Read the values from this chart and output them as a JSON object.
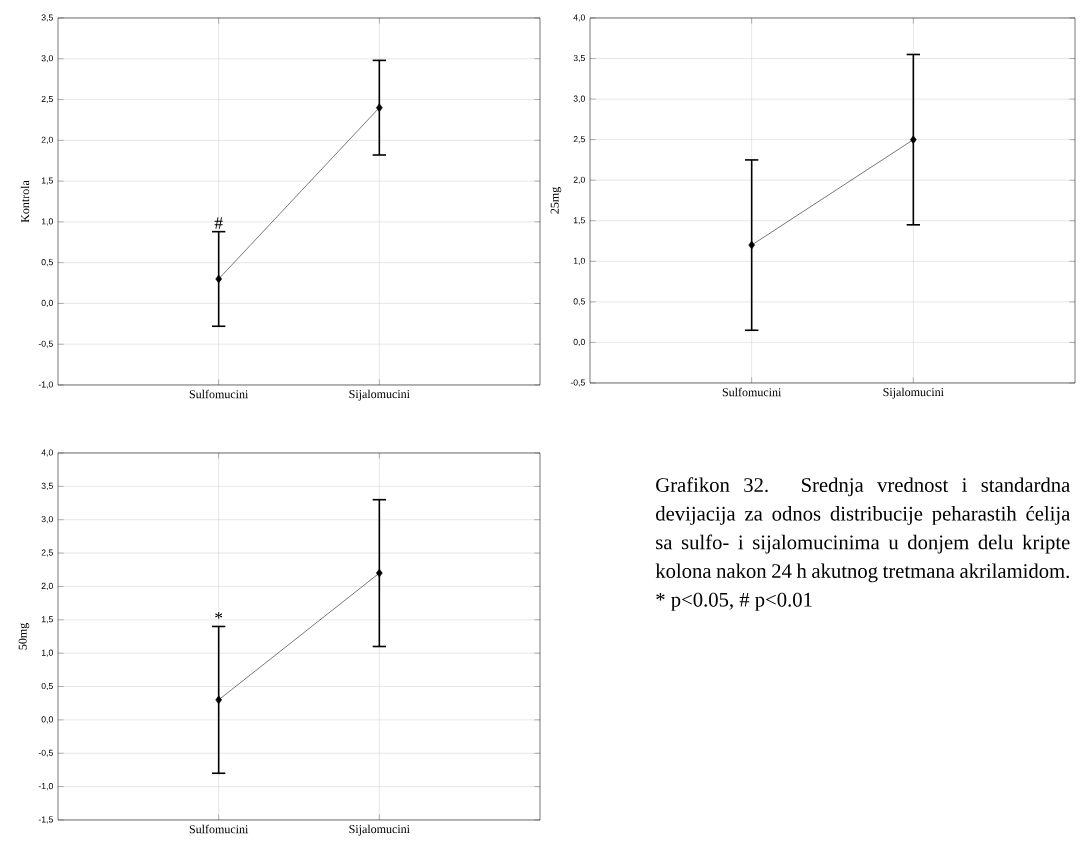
{
  "chart_data": [
    {
      "type": "line",
      "categories": [
        "Sulfomucini",
        "Sijalomucini"
      ],
      "ylabel": "Kontrola",
      "series": [
        {
          "color": "#000000",
          "values": [
            0.3,
            2.4
          ],
          "errors": [
            0.58,
            0.58
          ]
        }
      ],
      "ylim": [
        -1,
        3.5
      ],
      "yticks": [
        {
          "value": -1,
          "label": "-1,0"
        },
        {
          "value": -0.5,
          "label": "-0,5"
        },
        {
          "value": 0,
          "label": "0,0"
        },
        {
          "value": 0.5,
          "label": "0,5"
        },
        {
          "value": 1,
          "label": "1,0"
        },
        {
          "value": 1.5,
          "label": "1,5"
        },
        {
          "value": 2,
          "label": "2,0"
        },
        {
          "value": 2.5,
          "label": "2,5"
        },
        {
          "value": 3,
          "label": "3,0"
        },
        {
          "value": 3.5,
          "label": "3,5"
        }
      ],
      "grid": true,
      "marker": "diamond",
      "line_style": "solid",
      "annotations": [
        {
          "text": "#",
          "x": "Sulfomucini",
          "y": 0.88
        }
      ]
    },
    {
      "type": "line",
      "categories": [
        "Sulfomucini",
        "Sijalomucini"
      ],
      "ylabel": "25mg",
      "series": [
        {
          "color": "#000000",
          "values": [
            1.2,
            2.5
          ],
          "errors": [
            1.05,
            1.05
          ]
        }
      ],
      "ylim": [
        -0.5,
        4
      ],
      "yticks": [
        {
          "value": -0.5,
          "label": "-0,5"
        },
        {
          "value": 0,
          "label": "0,0"
        },
        {
          "value": 0.5,
          "label": "0,5"
        },
        {
          "value": 1,
          "label": "1,0"
        },
        {
          "value": 1.5,
          "label": "1,5"
        },
        {
          "value": 2,
          "label": "2,0"
        },
        {
          "value": 2.5,
          "label": "2,5"
        },
        {
          "value": 3,
          "label": "3,0"
        },
        {
          "value": 3.5,
          "label": "3,5"
        },
        {
          "value": 4,
          "label": "4,0"
        }
      ],
      "grid": true,
      "marker": "diamond",
      "line_style": "solid"
    },
    {
      "type": "line",
      "categories": [
        "Sulfomucini",
        "Sijalomucini"
      ],
      "ylabel": "50mg",
      "series": [
        {
          "color": "#000000",
          "values": [
            0.3,
            2.2
          ],
          "errors": [
            1.1,
            1.1
          ]
        }
      ],
      "ylim": [
        -1.5,
        4
      ],
      "yticks": [
        {
          "value": -1.5,
          "label": "-1,5"
        },
        {
          "value": -1,
          "label": "-1,0"
        },
        {
          "value": -0.5,
          "label": "-0,5"
        },
        {
          "value": 0,
          "label": "0,0"
        },
        {
          "value": 0.5,
          "label": "0,5"
        },
        {
          "value": 1,
          "label": "1,0"
        },
        {
          "value": 1.5,
          "label": "1,5"
        },
        {
          "value": 2,
          "label": "2,0"
        },
        {
          "value": 2.5,
          "label": "2,5"
        },
        {
          "value": 3,
          "label": "3,0"
        },
        {
          "value": 3.5,
          "label": "3,5"
        },
        {
          "value": 4,
          "label": "4,0"
        }
      ],
      "grid": true,
      "marker": "diamond",
      "line_style": "solid",
      "annotations": [
        {
          "text": "*",
          "x": "Sulfomucini",
          "y": 1.4
        }
      ]
    },
    {
      "type": "other",
      "annotations": [
        "Grafikon 32. Srednja vrednost i standardna devijacija za odnos distribucije peharastih ćelija sa sulfo- i sijalomucinima u donjem delu kripte kolona nakon 24 h akutnog tretmana akrilamidom.",
        "* p<0.05, # p<0.01"
      ]
    }
  ]
}
